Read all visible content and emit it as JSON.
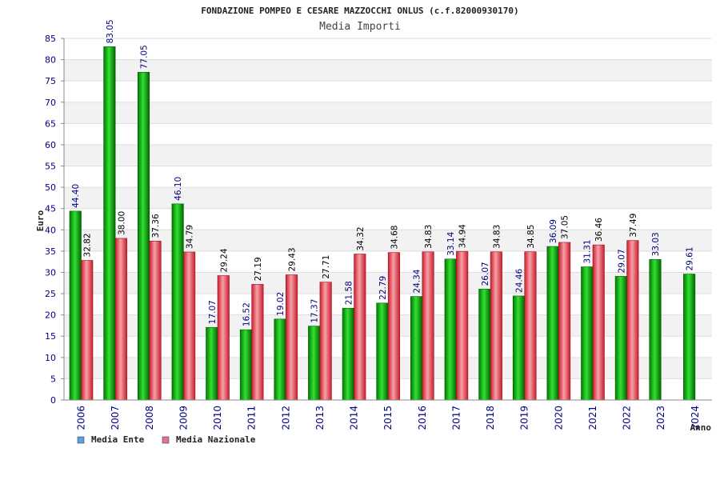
{
  "chart_data": {
    "type": "bar",
    "title": "FONDAZIONE POMPEO E CESARE MAZZOCCHI ONLUS (c.f.82000930170)",
    "subtitle": "Media Importi",
    "xlabel": "Anno",
    "ylabel": "Euro",
    "ylim": [
      0,
      85
    ],
    "ytick_step": 5,
    "grid": true,
    "legend_position": "bottom-left",
    "categories": [
      "2006",
      "2007",
      "2008",
      "2009",
      "2010",
      "2011",
      "2012",
      "2013",
      "2014",
      "2015",
      "2016",
      "2017",
      "2018",
      "2019",
      "2020",
      "2021",
      "2022",
      "2023",
      "2024"
    ],
    "series": [
      {
        "name": "Media Ente",
        "color": "#00b000",
        "legend_color": "#5aa0e6",
        "values": [
          44.4,
          83.05,
          77.05,
          46.1,
          17.07,
          16.52,
          19.02,
          17.37,
          21.58,
          22.79,
          24.34,
          33.14,
          26.07,
          24.46,
          36.09,
          31.31,
          29.07,
          33.03,
          29.61
        ],
        "labels": [
          "44.40",
          "83.05",
          "77.05",
          "46.10",
          "17.07",
          "16.52",
          "19.02",
          "17.37",
          "21.58",
          "22.79",
          "24.34",
          "33.14",
          "26.07",
          "24.46",
          "36.09",
          "31.31",
          "29.07",
          "33.03",
          "29.61"
        ]
      },
      {
        "name": "Media Nazionale",
        "color": "#e03040",
        "legend_color": "#e070a0",
        "values": [
          32.82,
          38.0,
          37.36,
          34.79,
          29.24,
          27.19,
          29.43,
          27.71,
          34.32,
          34.68,
          34.83,
          34.94,
          34.83,
          34.85,
          37.05,
          36.46,
          37.49,
          null,
          null
        ],
        "labels": [
          "32.82",
          "38.00",
          "37.36",
          "34.79",
          "29.24",
          "27.19",
          "29.43",
          "27.71",
          "34.32",
          "34.68",
          "34.83",
          "34.94",
          "34.83",
          "34.85",
          "37.05",
          "36.46",
          "37.49",
          "",
          ""
        ]
      }
    ]
  }
}
